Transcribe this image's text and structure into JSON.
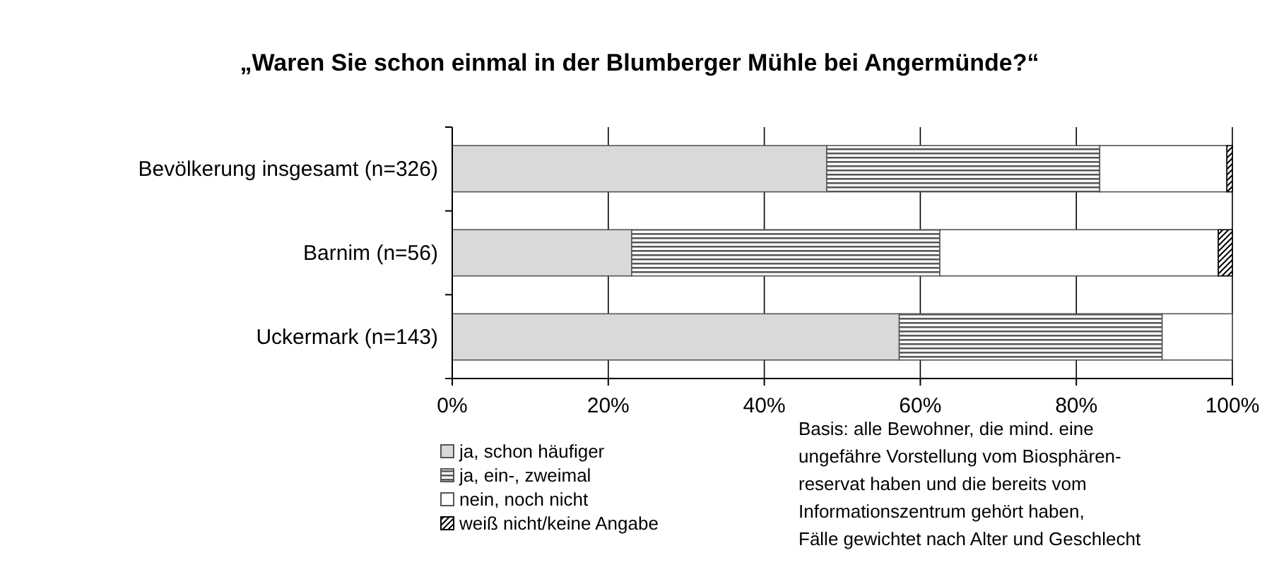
{
  "chart_data": {
    "type": "bar",
    "orientation": "horizontal",
    "stacked": true,
    "title": "„Waren Sie schon einmal in der Blumberger Mühle bei Angermünde?“",
    "categories": [
      "Bevölkerung insgesamt (n=326)",
      "Barnim (n=56)",
      "Uckermark (n=143)"
    ],
    "series": [
      {
        "name": "ja, schon häufiger",
        "color": "#d9d9d9",
        "values": [
          48,
          23,
          57.3
        ]
      },
      {
        "name": "ja, ein-, zweimal",
        "color": "#595959",
        "values": [
          35,
          39.5,
          33.7
        ]
      },
      {
        "name": "nein, noch nicht",
        "color": "#ffffff",
        "values": [
          16.3,
          35.7,
          9
        ]
      },
      {
        "name": "weiß nicht/keine Angabe",
        "color": "#000000",
        "values": [
          0.7,
          1.8,
          0
        ]
      }
    ],
    "xlim": [
      0,
      100
    ],
    "xticks": [
      {
        "value": 0,
        "label": "0%"
      },
      {
        "value": 20,
        "label": "20%"
      },
      {
        "value": 40,
        "label": "40%"
      },
      {
        "value": 60,
        "label": "60%"
      },
      {
        "value": 80,
        "label": "80%"
      },
      {
        "value": 100,
        "label": "100%"
      }
    ],
    "grid": "x",
    "legend": "bottom left",
    "annotations": [
      "Basis: alle Bewohner, die mind. eine\nungefähre Vorstellung vom Biosphären-\nreservat haben und die bereits vom\nInformationszentrum gehört haben,\nFälle gewichtet nach Alter und Geschlecht"
    ]
  }
}
